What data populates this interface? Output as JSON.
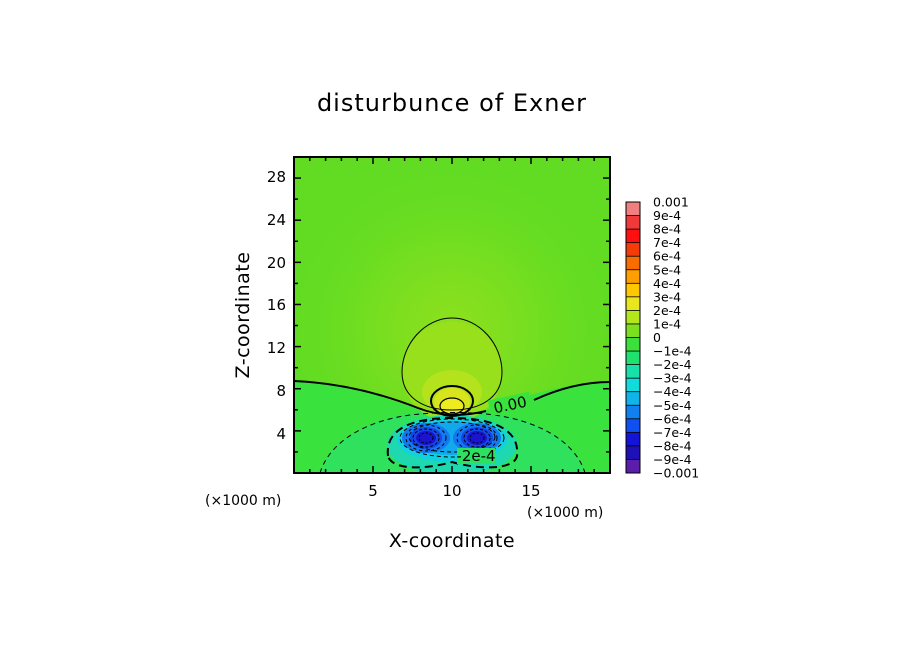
{
  "chart_data": {
    "type": "contour",
    "title": "disturbunce of Exner",
    "xlabel": "X-coordinate",
    "ylabel": "Z-coordinate",
    "x_unit_left": "(×1000 m)",
    "x_unit_right": "(×1000 m)",
    "xlim": [
      0,
      20
    ],
    "ylim": [
      0,
      30
    ],
    "xticks": [
      "5",
      "10",
      "15"
    ],
    "yticks": [
      "4",
      "8",
      "12",
      "16",
      "20",
      "24",
      "28"
    ],
    "contour_labels": [
      {
        "text": "0.00",
        "x": 12.8,
        "z": 6.2
      },
      {
        "text": "-2e-4",
        "x": 10.7,
        "z": 1.4
      }
    ],
    "features": [
      {
        "kind": "positive-maximum",
        "x": 10.0,
        "z": 6.5,
        "value": 0.0003
      },
      {
        "kind": "negative-minimum",
        "x": 8.5,
        "z": 3.3,
        "value": -0.0008
      },
      {
        "kind": "negative-minimum",
        "x": 11.5,
        "z": 3.3,
        "value": -0.0008
      }
    ],
    "colorbar": {
      "levels": [
        "0.001",
        "9e-4",
        "8e-4",
        "7e-4",
        "6e-4",
        "5e-4",
        "4e-4",
        "3e-4",
        "2e-4",
        "1e-4",
        "0",
        "-1e-4",
        "-2e-4",
        "-3e-4",
        "-4e-4",
        "-5e-4",
        "-6e-4",
        "-7e-4",
        "-8e-4",
        "-9e-4",
        "-0.001"
      ],
      "colors": [
        "#f08080",
        "#f03a3a",
        "#ff1010",
        "#f43c0a",
        "#f86c00",
        "#ff9e00",
        "#ffc800",
        "#e8e61c",
        "#b4e61e",
        "#7ce020",
        "#3ce03a",
        "#20e070",
        "#18e0a8",
        "#10dcdc",
        "#10b4e8",
        "#1080f0",
        "#1050f0",
        "#1414d8",
        "#1e10b4",
        "#5a1eaa"
      ]
    }
  }
}
